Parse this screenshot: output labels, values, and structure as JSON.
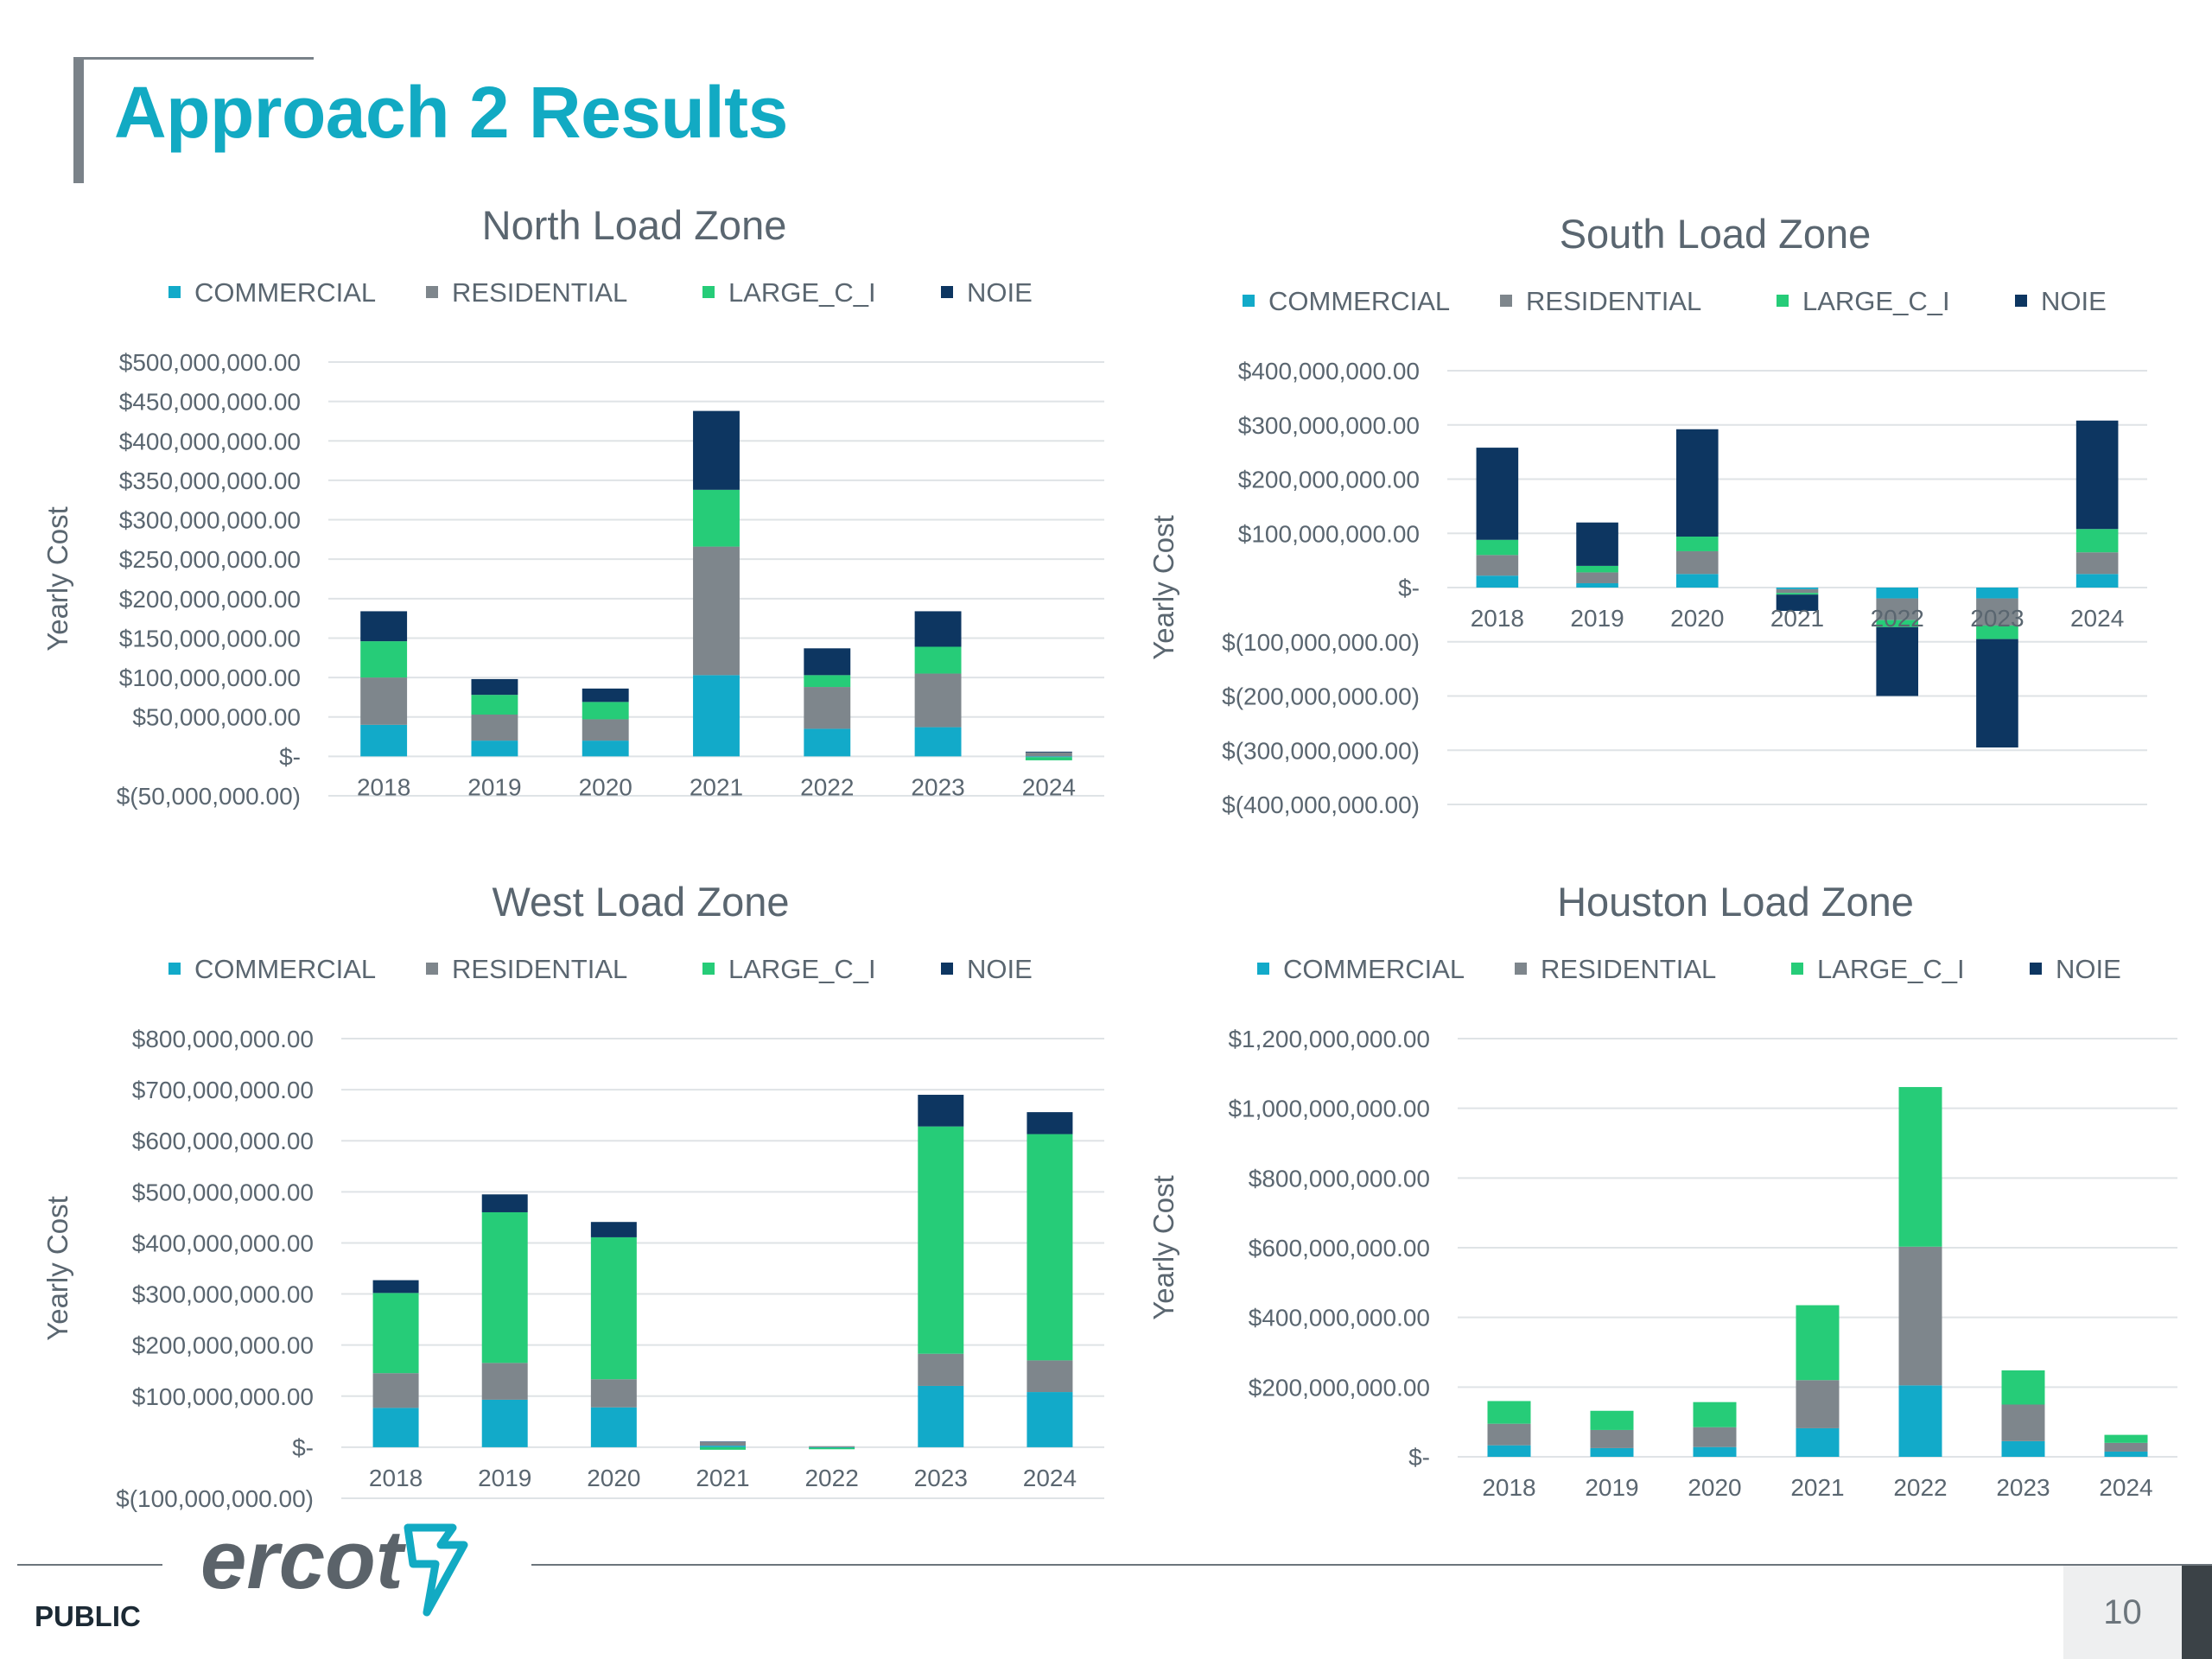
{
  "page": {
    "title": "Approach 2 Results",
    "footer_label": "PUBLIC",
    "page_number": "10",
    "logo_text": "ercot"
  },
  "colors": {
    "COMMERCIAL": "#12aac9",
    "RESIDENTIAL": "#7e868c",
    "LARGE_C_I": "#26cc78",
    "NOIE": "#0d3661",
    "title": "#12aac3"
  },
  "chart_data": [
    {
      "type": "bar",
      "stacked": true,
      "title": "North Load Zone",
      "ylabel": "Yearly Cost",
      "legend_position": "top",
      "grid": true,
      "categories": [
        "2018",
        "2019",
        "2020",
        "2021",
        "2022",
        "2023",
        "2024"
      ],
      "ylim": [
        -50000000,
        500000000
      ],
      "yticks": [
        -50000000,
        0,
        50000000,
        100000000,
        150000000,
        200000000,
        250000000,
        300000000,
        350000000,
        400000000,
        450000000,
        500000000
      ],
      "ytick_labels": [
        "$(50,000,000.00)",
        "$-",
        "$50,000,000.00",
        "$100,000,000.00",
        "$150,000,000.00",
        "$200,000,000.00",
        "$250,000,000.00",
        "$300,000,000.00",
        "$350,000,000.00",
        "$400,000,000.00",
        "$450,000,000.00",
        "$500,000,000.00"
      ],
      "series": [
        {
          "name": "COMMERCIAL",
          "values": [
            40000000,
            20000000,
            20000000,
            103000000,
            35000000,
            37000000,
            -1000000
          ]
        },
        {
          "name": "RESIDENTIAL",
          "values": [
            60000000,
            33000000,
            27000000,
            163000000,
            53000000,
            68000000,
            5000000
          ]
        },
        {
          "name": "LARGE_C_I",
          "values": [
            46000000,
            25000000,
            22000000,
            72000000,
            15000000,
            34000000,
            -4000000
          ]
        },
        {
          "name": "NOIE",
          "values": [
            38000000,
            20000000,
            17000000,
            100000000,
            34000000,
            45000000,
            1000000
          ]
        }
      ]
    },
    {
      "type": "bar",
      "stacked": true,
      "title": "South Load Zone",
      "ylabel": "Yearly Cost",
      "legend_position": "top",
      "grid": true,
      "categories": [
        "2018",
        "2019",
        "2020",
        "2021",
        "2022",
        "2023",
        "2024"
      ],
      "ylim": [
        -400000000,
        400000000
      ],
      "yticks": [
        -400000000,
        -300000000,
        -200000000,
        -100000000,
        0,
        100000000,
        200000000,
        300000000,
        400000000
      ],
      "ytick_labels": [
        "$(400,000,000.00)",
        "$(300,000,000.00)",
        "$(200,000,000.00)",
        "$(100,000,000.00)",
        "$-",
        "$100,000,000.00",
        "$200,000,000.00",
        "$300,000,000.00",
        "$400,000,000.00"
      ],
      "series": [
        {
          "name": "COMMERCIAL",
          "values": [
            22000000,
            8000000,
            25000000,
            -3000000,
            -20000000,
            -20000000,
            25000000
          ]
        },
        {
          "name": "RESIDENTIAL",
          "values": [
            38000000,
            20000000,
            42000000,
            -7000000,
            -40000000,
            -50000000,
            40000000
          ]
        },
        {
          "name": "LARGE_C_I",
          "values": [
            28000000,
            12000000,
            27000000,
            -3000000,
            -13000000,
            -25000000,
            43000000
          ]
        },
        {
          "name": "NOIE",
          "values": [
            170000000,
            80000000,
            198000000,
            -30000000,
            -127000000,
            -200000000,
            200000000
          ]
        }
      ]
    },
    {
      "type": "bar",
      "stacked": true,
      "title": "West Load Zone",
      "ylabel": "Yearly Cost",
      "legend_position": "top",
      "grid": true,
      "categories": [
        "2018",
        "2019",
        "2020",
        "2021",
        "2022",
        "2023",
        "2024"
      ],
      "ylim": [
        -100000000,
        800000000
      ],
      "yticks": [
        -100000000,
        0,
        100000000,
        200000000,
        300000000,
        400000000,
        500000000,
        600000000,
        700000000,
        800000000
      ],
      "ytick_labels": [
        "$(100,000,000.00)",
        "$-",
        "$100,000,000.00",
        "$200,000,000.00",
        "$300,000,000.00",
        "$400,000,000.00",
        "$500,000,000.00",
        "$600,000,000.00",
        "$700,000,000.00",
        "$800,000,000.00"
      ],
      "series": [
        {
          "name": "COMMERCIAL",
          "values": [
            77000000,
            93000000,
            78000000,
            3000000,
            -1000000,
            120000000,
            108000000
          ]
        },
        {
          "name": "RESIDENTIAL",
          "values": [
            68000000,
            72000000,
            55000000,
            7000000,
            2000000,
            63000000,
            62000000
          ]
        },
        {
          "name": "LARGE_C_I",
          "values": [
            157000000,
            295000000,
            278000000,
            -5000000,
            -3000000,
            445000000,
            443000000
          ]
        },
        {
          "name": "NOIE",
          "values": [
            25000000,
            35000000,
            30000000,
            1000000,
            0,
            62000000,
            43000000
          ]
        }
      ]
    },
    {
      "type": "bar",
      "stacked": true,
      "title": "Houston Load Zone",
      "ylabel": "Yearly Cost",
      "legend_position": "top",
      "grid": true,
      "categories": [
        "2018",
        "2019",
        "2020",
        "2021",
        "2022",
        "2023",
        "2024"
      ],
      "ylim": [
        0,
        1200000000
      ],
      "yticks": [
        0,
        200000000,
        400000000,
        600000000,
        800000000,
        1000000000,
        1200000000
      ],
      "ytick_labels": [
        "$-",
        "$200,000,000.00",
        "$400,000,000.00",
        "$600,000,000.00",
        "$800,000,000.00",
        "$1,000,000,000.00",
        "$1,200,000,000.00"
      ],
      "series": [
        {
          "name": "COMMERCIAL",
          "values": [
            33000000,
            25000000,
            28000000,
            82000000,
            205000000,
            45000000,
            15000000
          ]
        },
        {
          "name": "RESIDENTIAL",
          "values": [
            62000000,
            52000000,
            57000000,
            138000000,
            398000000,
            105000000,
            25000000
          ]
        },
        {
          "name": "LARGE_C_I",
          "values": [
            65000000,
            55000000,
            72000000,
            215000000,
            458000000,
            98000000,
            23000000
          ]
        },
        {
          "name": "NOIE",
          "values": [
            0,
            0,
            0,
            0,
            0,
            0,
            0
          ]
        }
      ]
    }
  ]
}
